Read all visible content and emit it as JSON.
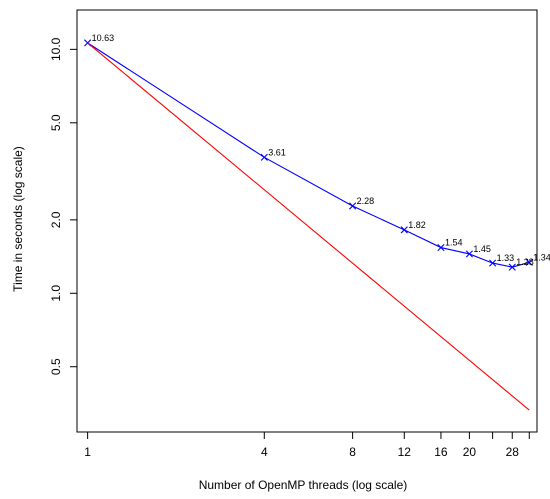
{
  "chart_data": {
    "type": "line",
    "xlabel": "Number of OpenMP threads (log scale)",
    "ylabel": "Time in seconds (log scale)",
    "x_scale": "log",
    "y_scale": "log",
    "xlim": [
      0.92,
      34
    ],
    "ylim": [
      0.27,
      14.5
    ],
    "x_ticks": [
      1,
      4,
      8,
      12,
      16,
      20,
      24,
      28,
      32
    ],
    "x_tick_labels": [
      "1",
      "4",
      "8",
      "12",
      "16",
      "20",
      "",
      "28",
      ""
    ],
    "y_ticks": [
      0.5,
      1.0,
      2.0,
      5.0,
      10.0
    ],
    "y_tick_labels": [
      "0.5",
      "1.0",
      "2.0",
      "5.0",
      "10.0"
    ],
    "grid": false,
    "series": [
      {
        "color": "#0000ff",
        "marker": "x",
        "x": [
          1,
          4,
          8,
          12,
          16,
          20,
          24,
          28,
          32
        ],
        "y": [
          10.63,
          3.61,
          2.28,
          1.82,
          1.54,
          1.45,
          1.33,
          1.28,
          1.34
        ],
        "labels": [
          "10.63",
          "3.61",
          "2.28",
          "1.82",
          "1.54",
          "1.45",
          "1.33",
          "1.28",
          "1.34"
        ]
      },
      {
        "color": "#ff0000",
        "marker": "none",
        "x": [
          1,
          32
        ],
        "y": [
          10.63,
          0.332
        ]
      }
    ]
  }
}
